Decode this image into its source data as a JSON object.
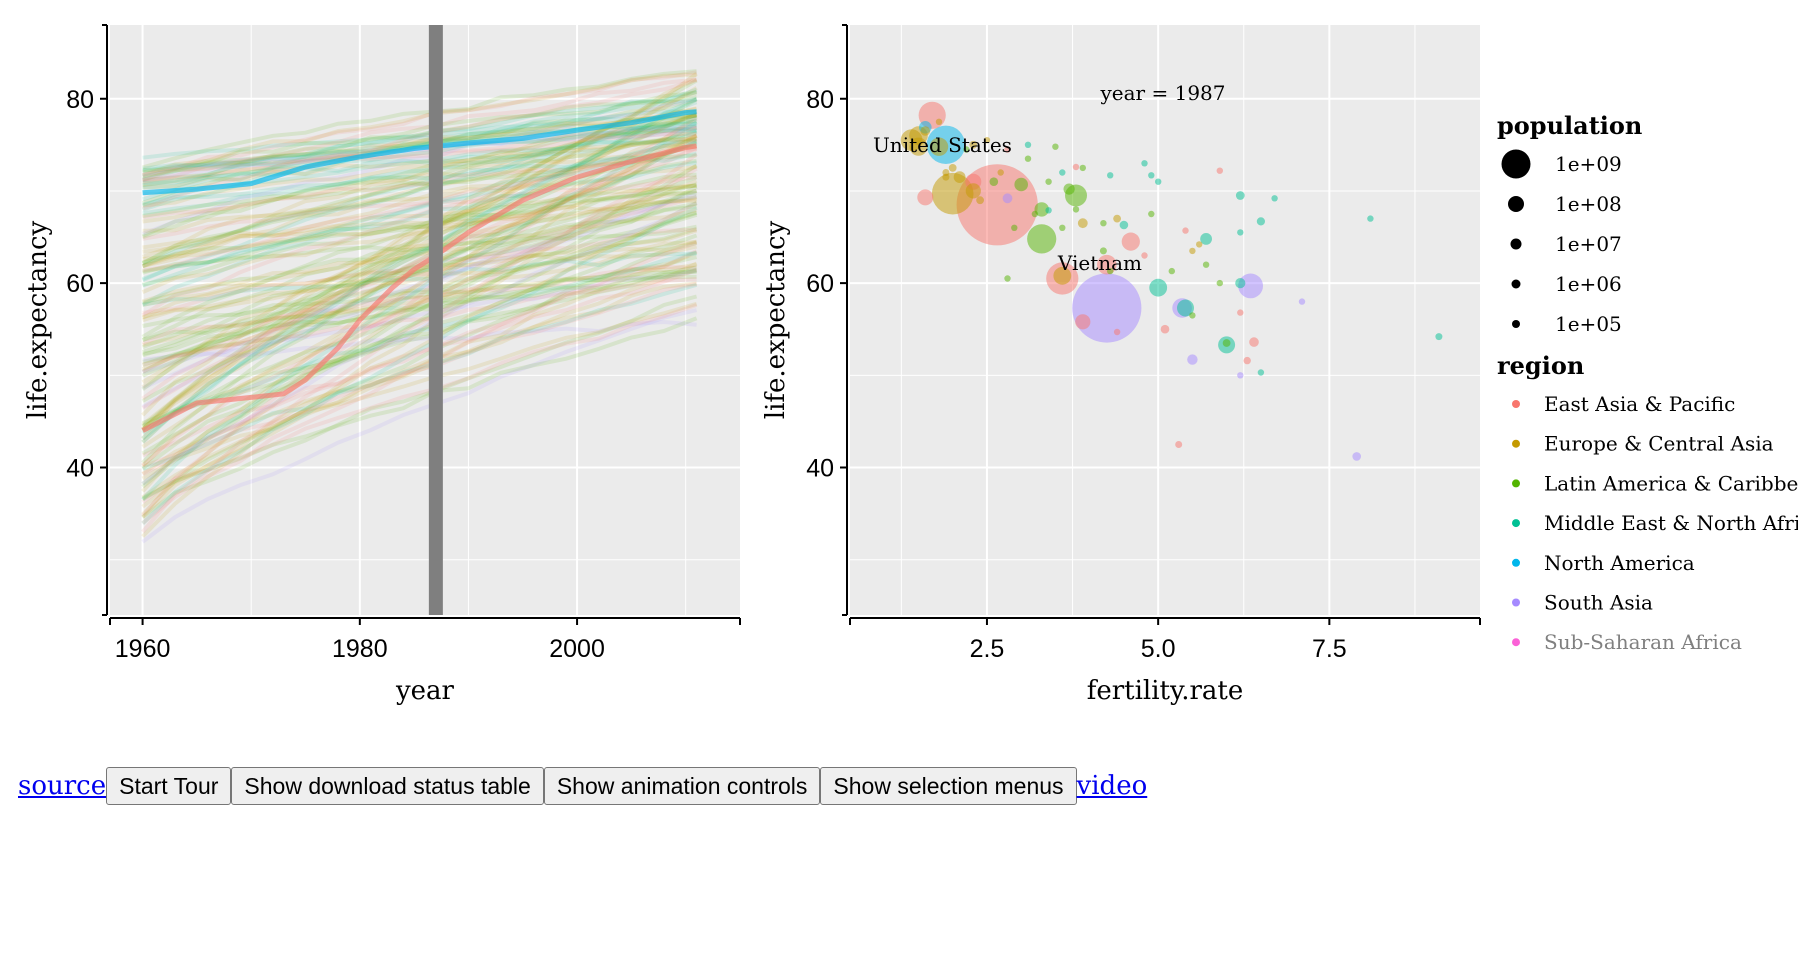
{
  "chart_data": [
    {
      "type": "line",
      "xlabel": "year",
      "ylabel": "life.expectancy",
      "xlim": [
        1957,
        2015
      ],
      "ylim": [
        24,
        88
      ],
      "xticks": [
        "1960",
        "1980",
        "2000"
      ],
      "yticks": [
        "40",
        "60",
        "80"
      ],
      "selected_year": 1987,
      "highlighted_series": [
        {
          "country": "United States",
          "region": "North America",
          "x": [
            1960,
            1965,
            1970,
            1975,
            1980,
            1985,
            1990,
            1995,
            2000,
            2005,
            2010,
            2011
          ],
          "y": [
            69.8,
            70.2,
            70.8,
            72.6,
            73.7,
            74.6,
            75.2,
            75.7,
            76.6,
            77.4,
            78.5,
            78.6
          ]
        },
        {
          "country": "Vietnam",
          "region": "East Asia & Pacific",
          "x": [
            1960,
            1965,
            1970,
            1973,
            1975,
            1978,
            1980,
            1983,
            1985,
            1987,
            1990,
            1995,
            2000,
            2005,
            2010,
            2011
          ],
          "y": [
            44.0,
            47.0,
            47.6,
            48.0,
            49.5,
            53.0,
            56.0,
            59.5,
            61.5,
            63.0,
            65.5,
            69.0,
            71.5,
            73.2,
            74.7,
            74.9
          ]
        }
      ]
    },
    {
      "type": "scatter",
      "xlabel": "fertility.rate",
      "ylabel": "life.expectancy",
      "xlim": [
        0.5,
        9.7
      ],
      "ylim": [
        24,
        88
      ],
      "xticks": [
        "2.5",
        "5.0",
        "7.5"
      ],
      "yticks": [
        "40",
        "60",
        "80"
      ],
      "annotation": "year = 1987",
      "labels": [
        {
          "text": "United States",
          "x": 1.85,
          "y": 75
        },
        {
          "text": "Vietnam",
          "x": 4.15,
          "y": 62.2
        }
      ],
      "points": [
        {
          "x": 1.9,
          "y": 75.0,
          "pop": 243000000.0,
          "region": "North America"
        },
        {
          "x": 1.6,
          "y": 76.9,
          "pop": 26000000.0,
          "region": "North America"
        },
        {
          "x": 4.25,
          "y": 62.0,
          "pop": 63000000.0,
          "region": "East Asia & Pacific"
        },
        {
          "x": 4.25,
          "y": 57.3,
          "pop": 790000000.0,
          "region": "South Asia"
        },
        {
          "x": 2.65,
          "y": 68.5,
          "pop": 1090000000.0,
          "region": "East Asia & Pacific"
        },
        {
          "x": 1.7,
          "y": 78.2,
          "pop": 122000000.0,
          "region": "East Asia & Pacific"
        },
        {
          "x": 3.6,
          "y": 60.5,
          "pop": 172000000.0,
          "region": "East Asia & Pacific"
        },
        {
          "x": 1.6,
          "y": 69.3,
          "pop": 42000000.0,
          "region": "East Asia & Pacific"
        },
        {
          "x": 4.6,
          "y": 64.5,
          "pop": 55000000.0,
          "region": "East Asia & Pacific"
        },
        {
          "x": 3.9,
          "y": 55.8,
          "pop": 38000000.0,
          "region": "East Asia & Pacific"
        },
        {
          "x": 5.3,
          "y": 42.5,
          "pop": 8000000.0,
          "region": "East Asia & Pacific"
        },
        {
          "x": 6.2,
          "y": 56.8,
          "pop": 3000000.0,
          "region": "East Asia & Pacific"
        },
        {
          "x": 6.4,
          "y": 53.6,
          "pop": 15000000.0,
          "region": "East Asia & Pacific"
        },
        {
          "x": 6.3,
          "y": 51.6,
          "pop": 9000000.0,
          "region": "East Asia & Pacific"
        },
        {
          "x": 5.1,
          "y": 55.0,
          "pop": 12000000.0,
          "region": "East Asia & Pacific"
        },
        {
          "x": 4.4,
          "y": 54.7,
          "pop": 1800000.0,
          "region": "East Asia & Pacific"
        },
        {
          "x": 3.8,
          "y": 72.6,
          "pop": 3000000.0,
          "region": "East Asia & Pacific"
        },
        {
          "x": 5.9,
          "y": 72.2,
          "pop": 2000000.0,
          "region": "East Asia & Pacific"
        },
        {
          "x": 5.4,
          "y": 65.7,
          "pop": 3000000.0,
          "region": "East Asia & Pacific"
        },
        {
          "x": 4.8,
          "y": 63.0,
          "pop": 2000000.0,
          "region": "East Asia & Pacific"
        },
        {
          "x": 2.3,
          "y": 71.0,
          "pop": 42000000.0,
          "region": "East Asia & Pacific"
        },
        {
          "x": 2.8,
          "y": 74.5,
          "pop": 2000000.0,
          "region": "East Asia & Pacific"
        },
        {
          "x": 1.5,
          "y": 74.8,
          "pop": 55000000.0,
          "region": "Europe & Central Asia"
        },
        {
          "x": 1.4,
          "y": 75.5,
          "pop": 78000000.0,
          "region": "Europe & Central Asia"
        },
        {
          "x": 1.8,
          "y": 74.8,
          "pop": 56000000.0,
          "region": "Europe & Central Asia"
        },
        {
          "x": 1.5,
          "y": 76.0,
          "pop": 57000000.0,
          "region": "Europe & Central Asia"
        },
        {
          "x": 2.0,
          "y": 69.7,
          "pop": 286000000.0,
          "region": "Europe & Central Asia"
        },
        {
          "x": 3.6,
          "y": 60.8,
          "pop": 52000000.0,
          "region": "Europe & Central Asia"
        },
        {
          "x": 2.3,
          "y": 70.0,
          "pop": 38000000.0,
          "region": "Europe & Central Asia"
        },
        {
          "x": 1.6,
          "y": 76.5,
          "pop": 15000000.0,
          "region": "Europe & Central Asia"
        },
        {
          "x": 2.1,
          "y": 71.5,
          "pop": 23000000.0,
          "region": "Europe & Central Asia"
        },
        {
          "x": 2.5,
          "y": 75.5,
          "pop": 4000000.0,
          "region": "Europe & Central Asia"
        },
        {
          "x": 2.7,
          "y": 72.0,
          "pop": 3000000.0,
          "region": "Europe & Central Asia"
        },
        {
          "x": 3.9,
          "y": 66.5,
          "pop": 16000000.0,
          "region": "Europe & Central Asia"
        },
        {
          "x": 4.4,
          "y": 67.0,
          "pop": 10000000.0,
          "region": "Europe & Central Asia"
        },
        {
          "x": 5.6,
          "y": 64.2,
          "pop": 5000000.0,
          "region": "Europe & Central Asia"
        },
        {
          "x": 2.4,
          "y": 69.0,
          "pop": 10000000.0,
          "region": "Europe & Central Asia"
        },
        {
          "x": 1.9,
          "y": 71.5,
          "pop": 8000000.0,
          "region": "Europe & Central Asia"
        },
        {
          "x": 2.0,
          "y": 72.5,
          "pop": 10000000.0,
          "region": "Europe & Central Asia"
        },
        {
          "x": 2.3,
          "y": 75.0,
          "pop": 10000000.0,
          "region": "Europe & Central Asia"
        },
        {
          "x": 1.8,
          "y": 77.5,
          "pop": 4000000.0,
          "region": "Europe & Central Asia"
        },
        {
          "x": 1.9,
          "y": 72.0,
          "pop": 8000000.0,
          "region": "Europe & Central Asia"
        },
        {
          "x": 5.5,
          "y": 63.5,
          "pop": 4000000.0,
          "region": "Europe & Central Asia"
        },
        {
          "x": 3.3,
          "y": 64.8,
          "pop": 140000000.0,
          "region": "Latin America & Caribbean"
        },
        {
          "x": 3.8,
          "y": 69.5,
          "pop": 80000000.0,
          "region": "Latin America & Caribbean"
        },
        {
          "x": 3.0,
          "y": 70.7,
          "pop": 31000000.0,
          "region": "Latin America & Caribbean"
        },
        {
          "x": 3.3,
          "y": 68.0,
          "pop": 34000000.0,
          "region": "Latin America & Caribbean"
        },
        {
          "x": 3.7,
          "y": 70.2,
          "pop": 21000000.0,
          "region": "Latin America & Caribbean"
        },
        {
          "x": 2.6,
          "y": 71.0,
          "pop": 12000000.0,
          "region": "Latin America & Caribbean"
        },
        {
          "x": 4.2,
          "y": 63.5,
          "pop": 8000000.0,
          "region": "Latin America & Caribbean"
        },
        {
          "x": 5.7,
          "y": 62.0,
          "pop": 6000000.0,
          "region": "Latin America & Caribbean"
        },
        {
          "x": 5.5,
          "y": 56.5,
          "pop": 4000000.0,
          "region": "Latin America & Caribbean"
        },
        {
          "x": 6.0,
          "y": 53.5,
          "pop": 10000000.0,
          "region": "Latin America & Caribbean"
        },
        {
          "x": 3.4,
          "y": 71.0,
          "pop": 3000000.0,
          "region": "Latin America & Caribbean"
        },
        {
          "x": 3.1,
          "y": 73.5,
          "pop": 2000000.0,
          "region": "Latin America & Caribbean"
        },
        {
          "x": 2.9,
          "y": 66.0,
          "pop": 2000000.0,
          "region": "Latin America & Caribbean"
        },
        {
          "x": 3.9,
          "y": 72.5,
          "pop": 2000000.0,
          "region": "Latin America & Caribbean"
        },
        {
          "x": 4.2,
          "y": 66.5,
          "pop": 5000000.0,
          "region": "Latin America & Caribbean"
        },
        {
          "x": 5.2,
          "y": 61.3,
          "pop": 3000000.0,
          "region": "Latin America & Caribbean"
        },
        {
          "x": 3.5,
          "y": 74.8,
          "pop": 2000000.0,
          "region": "Latin America & Caribbean"
        },
        {
          "x": 4.9,
          "y": 67.5,
          "pop": 2000000.0,
          "region": "Latin America & Caribbean"
        },
        {
          "x": 2.8,
          "y": 60.5,
          "pop": 1000000.0,
          "region": "Latin America & Caribbean"
        },
        {
          "x": 4.3,
          "y": 61.3,
          "pop": 2000000.0,
          "region": "Latin America & Caribbean"
        },
        {
          "x": 3.2,
          "y": 67.5,
          "pop": 2000000.0,
          "region": "Latin America & Caribbean"
        },
        {
          "x": 2.2,
          "y": 74.5,
          "pop": 1000000.0,
          "region": "Latin America & Caribbean"
        },
        {
          "x": 3.6,
          "y": 66.0,
          "pop": 1000000.0,
          "region": "Latin America & Caribbean"
        },
        {
          "x": 5.9,
          "y": 60.0,
          "pop": 2000000.0,
          "region": "Latin America & Caribbean"
        },
        {
          "x": 3.8,
          "y": 68.0,
          "pop": 1000000.0,
          "region": "Latin America & Caribbean"
        },
        {
          "x": 5.0,
          "y": 59.5,
          "pop": 52000000.0,
          "region": "Middle East & North Africa"
        },
        {
          "x": 5.4,
          "y": 57.3,
          "pop": 48000000.0,
          "region": "Middle East & North Africa"
        },
        {
          "x": 6.0,
          "y": 53.3,
          "pop": 48000000.0,
          "region": "Middle East & North Africa"
        },
        {
          "x": 5.7,
          "y": 64.8,
          "pop": 23000000.0,
          "region": "Middle East & North Africa"
        },
        {
          "x": 6.2,
          "y": 69.5,
          "pop": 13000000.0,
          "region": "Middle East & North Africa"
        },
        {
          "x": 6.2,
          "y": 60.0,
          "pop": 17000000.0,
          "region": "Middle East & North Africa"
        },
        {
          "x": 6.5,
          "y": 66.7,
          "pop": 11000000.0,
          "region": "Middle East & North Africa"
        },
        {
          "x": 4.5,
          "y": 66.3,
          "pop": 12000000.0,
          "region": "Middle East & North Africa"
        },
        {
          "x": 3.1,
          "y": 75.0,
          "pop": 4000000.0,
          "region": "Middle East & North Africa"
        },
        {
          "x": 6.7,
          "y": 69.2,
          "pop": 2000000.0,
          "region": "Middle East & North Africa"
        },
        {
          "x": 8.1,
          "y": 67.0,
          "pop": 1500000.0,
          "region": "Middle East & North Africa"
        },
        {
          "x": 3.4,
          "y": 67.9,
          "pop": 3500000.0,
          "region": "Middle East & North Africa"
        },
        {
          "x": 3.6,
          "y": 72.0,
          "pop": 3000000.0,
          "region": "Middle East & North Africa"
        },
        {
          "x": 4.8,
          "y": 73.0,
          "pop": 1500000.0,
          "region": "Middle East & North Africa"
        },
        {
          "x": 9.1,
          "y": 54.2,
          "pop": 8000000.0,
          "region": "Middle East & North Africa"
        },
        {
          "x": 6.2,
          "y": 65.5,
          "pop": 2000000.0,
          "region": "Middle East & North Africa"
        },
        {
          "x": 6.5,
          "y": 50.3,
          "pop": 2000000.0,
          "region": "Middle East & North Africa"
        },
        {
          "x": 4.9,
          "y": 71.7,
          "pop": 1000000.0,
          "region": "Middle East & North Africa"
        },
        {
          "x": 5.0,
          "y": 71.0,
          "pop": 1000000.0,
          "region": "Middle East & North Africa"
        },
        {
          "x": 4.3,
          "y": 71.7,
          "pop": 1000000.0,
          "region": "Middle East & North Africa"
        },
        {
          "x": 6.35,
          "y": 59.7,
          "pop": 102000000.0,
          "region": "South Asia"
        },
        {
          "x": 5.35,
          "y": 57.3,
          "pop": 63000000.0,
          "region": "South Asia"
        },
        {
          "x": 5.5,
          "y": 51.7,
          "pop": 18000000.0,
          "region": "South Asia"
        },
        {
          "x": 7.9,
          "y": 41.2,
          "pop": 12000000.0,
          "region": "South Asia"
        },
        {
          "x": 2.8,
          "y": 69.2,
          "pop": 16000000.0,
          "region": "South Asia"
        },
        {
          "x": 7.1,
          "y": 58.0,
          "pop": 2000000.0,
          "region": "South Asia"
        },
        {
          "x": 6.2,
          "y": 50.0,
          "pop": 2000000.0,
          "region": "South Asia"
        }
      ]
    }
  ],
  "legend": {
    "population": {
      "title": "population",
      "items": [
        {
          "label": "1e+09",
          "value": 1000000000.0
        },
        {
          "label": "1e+08",
          "value": 100000000.0
        },
        {
          "label": "1e+07",
          "value": 10000000.0
        },
        {
          "label": "1e+06",
          "value": 1000000.0
        },
        {
          "label": "1e+05",
          "value": 100000.0
        }
      ]
    },
    "region": {
      "title": "region",
      "items": [
        {
          "label": "East Asia & Pacific",
          "color": "#F8766D"
        },
        {
          "label": "Europe & Central Asia",
          "color": "#C49A00"
        },
        {
          "label": "Latin America & Caribbean",
          "color": "#53B400"
        },
        {
          "label": "Middle East & North Africa",
          "color": "#00C094"
        },
        {
          "label": "North America",
          "color": "#00B6EB"
        },
        {
          "label": "South Asia",
          "color": "#A58AFF"
        },
        {
          "label": "Sub-Saharan Africa",
          "color": "#FB61D7",
          "faded": true
        }
      ]
    }
  },
  "colors": {
    "panel_bg": "#ebebeb",
    "grid": "#ffffff",
    "year_bar": "#7f7f7f"
  },
  "links": {
    "source": "source",
    "video": "video"
  },
  "buttons": {
    "start_tour": "Start Tour",
    "download_status": "Show download status table",
    "animation_controls": "Show animation controls",
    "selection_menus": "Show selection menus"
  }
}
